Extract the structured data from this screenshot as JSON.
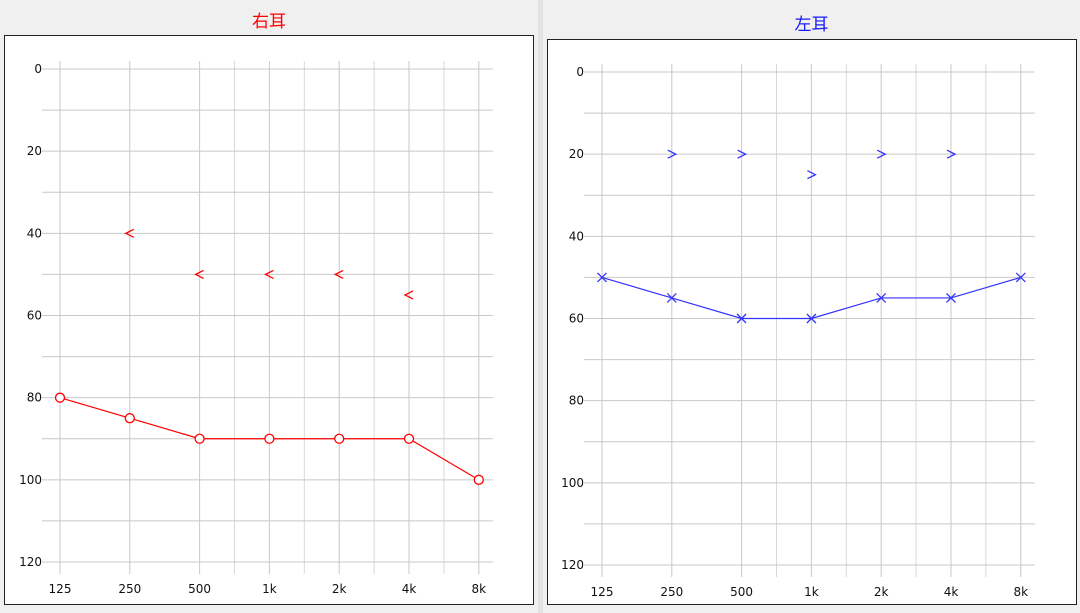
{
  "chart_data": [
    {
      "type": "line",
      "title": "右耳",
      "title_color": "#ff0000",
      "series_color": "#ff0000",
      "categories": [
        "125",
        "250",
        "500",
        "1k",
        "2k",
        "4k",
        "8k"
      ],
      "y_ticks": [
        "0",
        "20",
        "40",
        "60",
        "80",
        "100",
        "120"
      ],
      "ylim": [
        0,
        120
      ],
      "y_inverted": true,
      "grid": true,
      "series": [
        {
          "marker": "circle",
          "connected": true,
          "values": [
            80,
            85,
            90,
            90,
            90,
            90,
            100
          ]
        },
        {
          "marker": "<",
          "connected": false,
          "values": [
            null,
            40,
            50,
            50,
            50,
            55,
            null
          ]
        }
      ]
    },
    {
      "type": "line",
      "title": "左耳",
      "title_color": "#1a1aff",
      "series_color": "#3333ff",
      "categories": [
        "125",
        "250",
        "500",
        "1k",
        "2k",
        "4k",
        "8k"
      ],
      "y_ticks": [
        "0",
        "20",
        "40",
        "60",
        "80",
        "100",
        "120"
      ],
      "ylim": [
        0,
        120
      ],
      "y_inverted": true,
      "grid": true,
      "series": [
        {
          "marker": "x",
          "connected": true,
          "values": [
            50,
            55,
            60,
            60,
            55,
            55,
            50
          ]
        },
        {
          "marker": ">",
          "connected": false,
          "values": [
            null,
            20,
            20,
            25,
            20,
            20,
            null
          ]
        }
      ]
    }
  ]
}
